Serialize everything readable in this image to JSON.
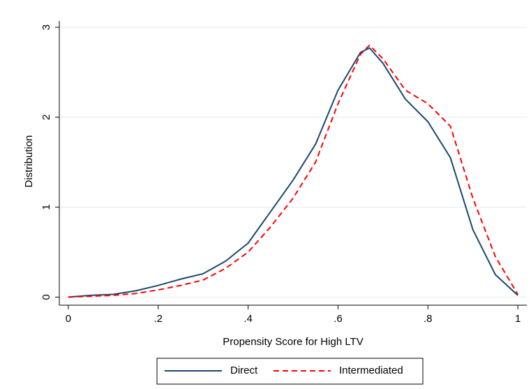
{
  "chart_data": {
    "type": "line",
    "x_label": "Propensity Score for High LTV",
    "y_label": "Distribution",
    "x": [
      0,
      0.05,
      0.1,
      0.15,
      0.2,
      0.25,
      0.3,
      0.35,
      0.4,
      0.45,
      0.5,
      0.55,
      0.6,
      0.65,
      0.67,
      0.7,
      0.75,
      0.8,
      0.85,
      0.9,
      0.95,
      1
    ],
    "series": [
      {
        "name": "Direct",
        "color": "#1a476f",
        "dash": false,
        "values": [
          0,
          0.02,
          0.03,
          0.07,
          0.13,
          0.2,
          0.26,
          0.4,
          0.6,
          0.95,
          1.3,
          1.7,
          2.3,
          2.72,
          2.77,
          2.6,
          2.2,
          1.95,
          1.55,
          0.75,
          0.25,
          0.02
        ]
      },
      {
        "name": "Intermediated",
        "color": "#ff0000",
        "dash": true,
        "values": [
          0,
          0.01,
          0.02,
          0.04,
          0.08,
          0.13,
          0.19,
          0.32,
          0.5,
          0.78,
          1.1,
          1.5,
          2.15,
          2.7,
          2.8,
          2.65,
          2.3,
          2.15,
          1.9,
          1.1,
          0.45,
          0.03
        ]
      }
    ],
    "xlim": [
      -0.02,
      1.02
    ],
    "ylim": [
      -0.09,
      3.07
    ],
    "xticks": [
      0,
      {
        "value": 0.2,
        "label": ".2"
      },
      {
        "value": 0.4,
        "label": ".4"
      },
      {
        "value": 0.6,
        "label": ".6"
      },
      {
        "value": 0.8,
        "label": ".8"
      },
      1
    ],
    "yticks": [
      0,
      1,
      2,
      3
    ],
    "grid": true,
    "legend": "bottom"
  }
}
